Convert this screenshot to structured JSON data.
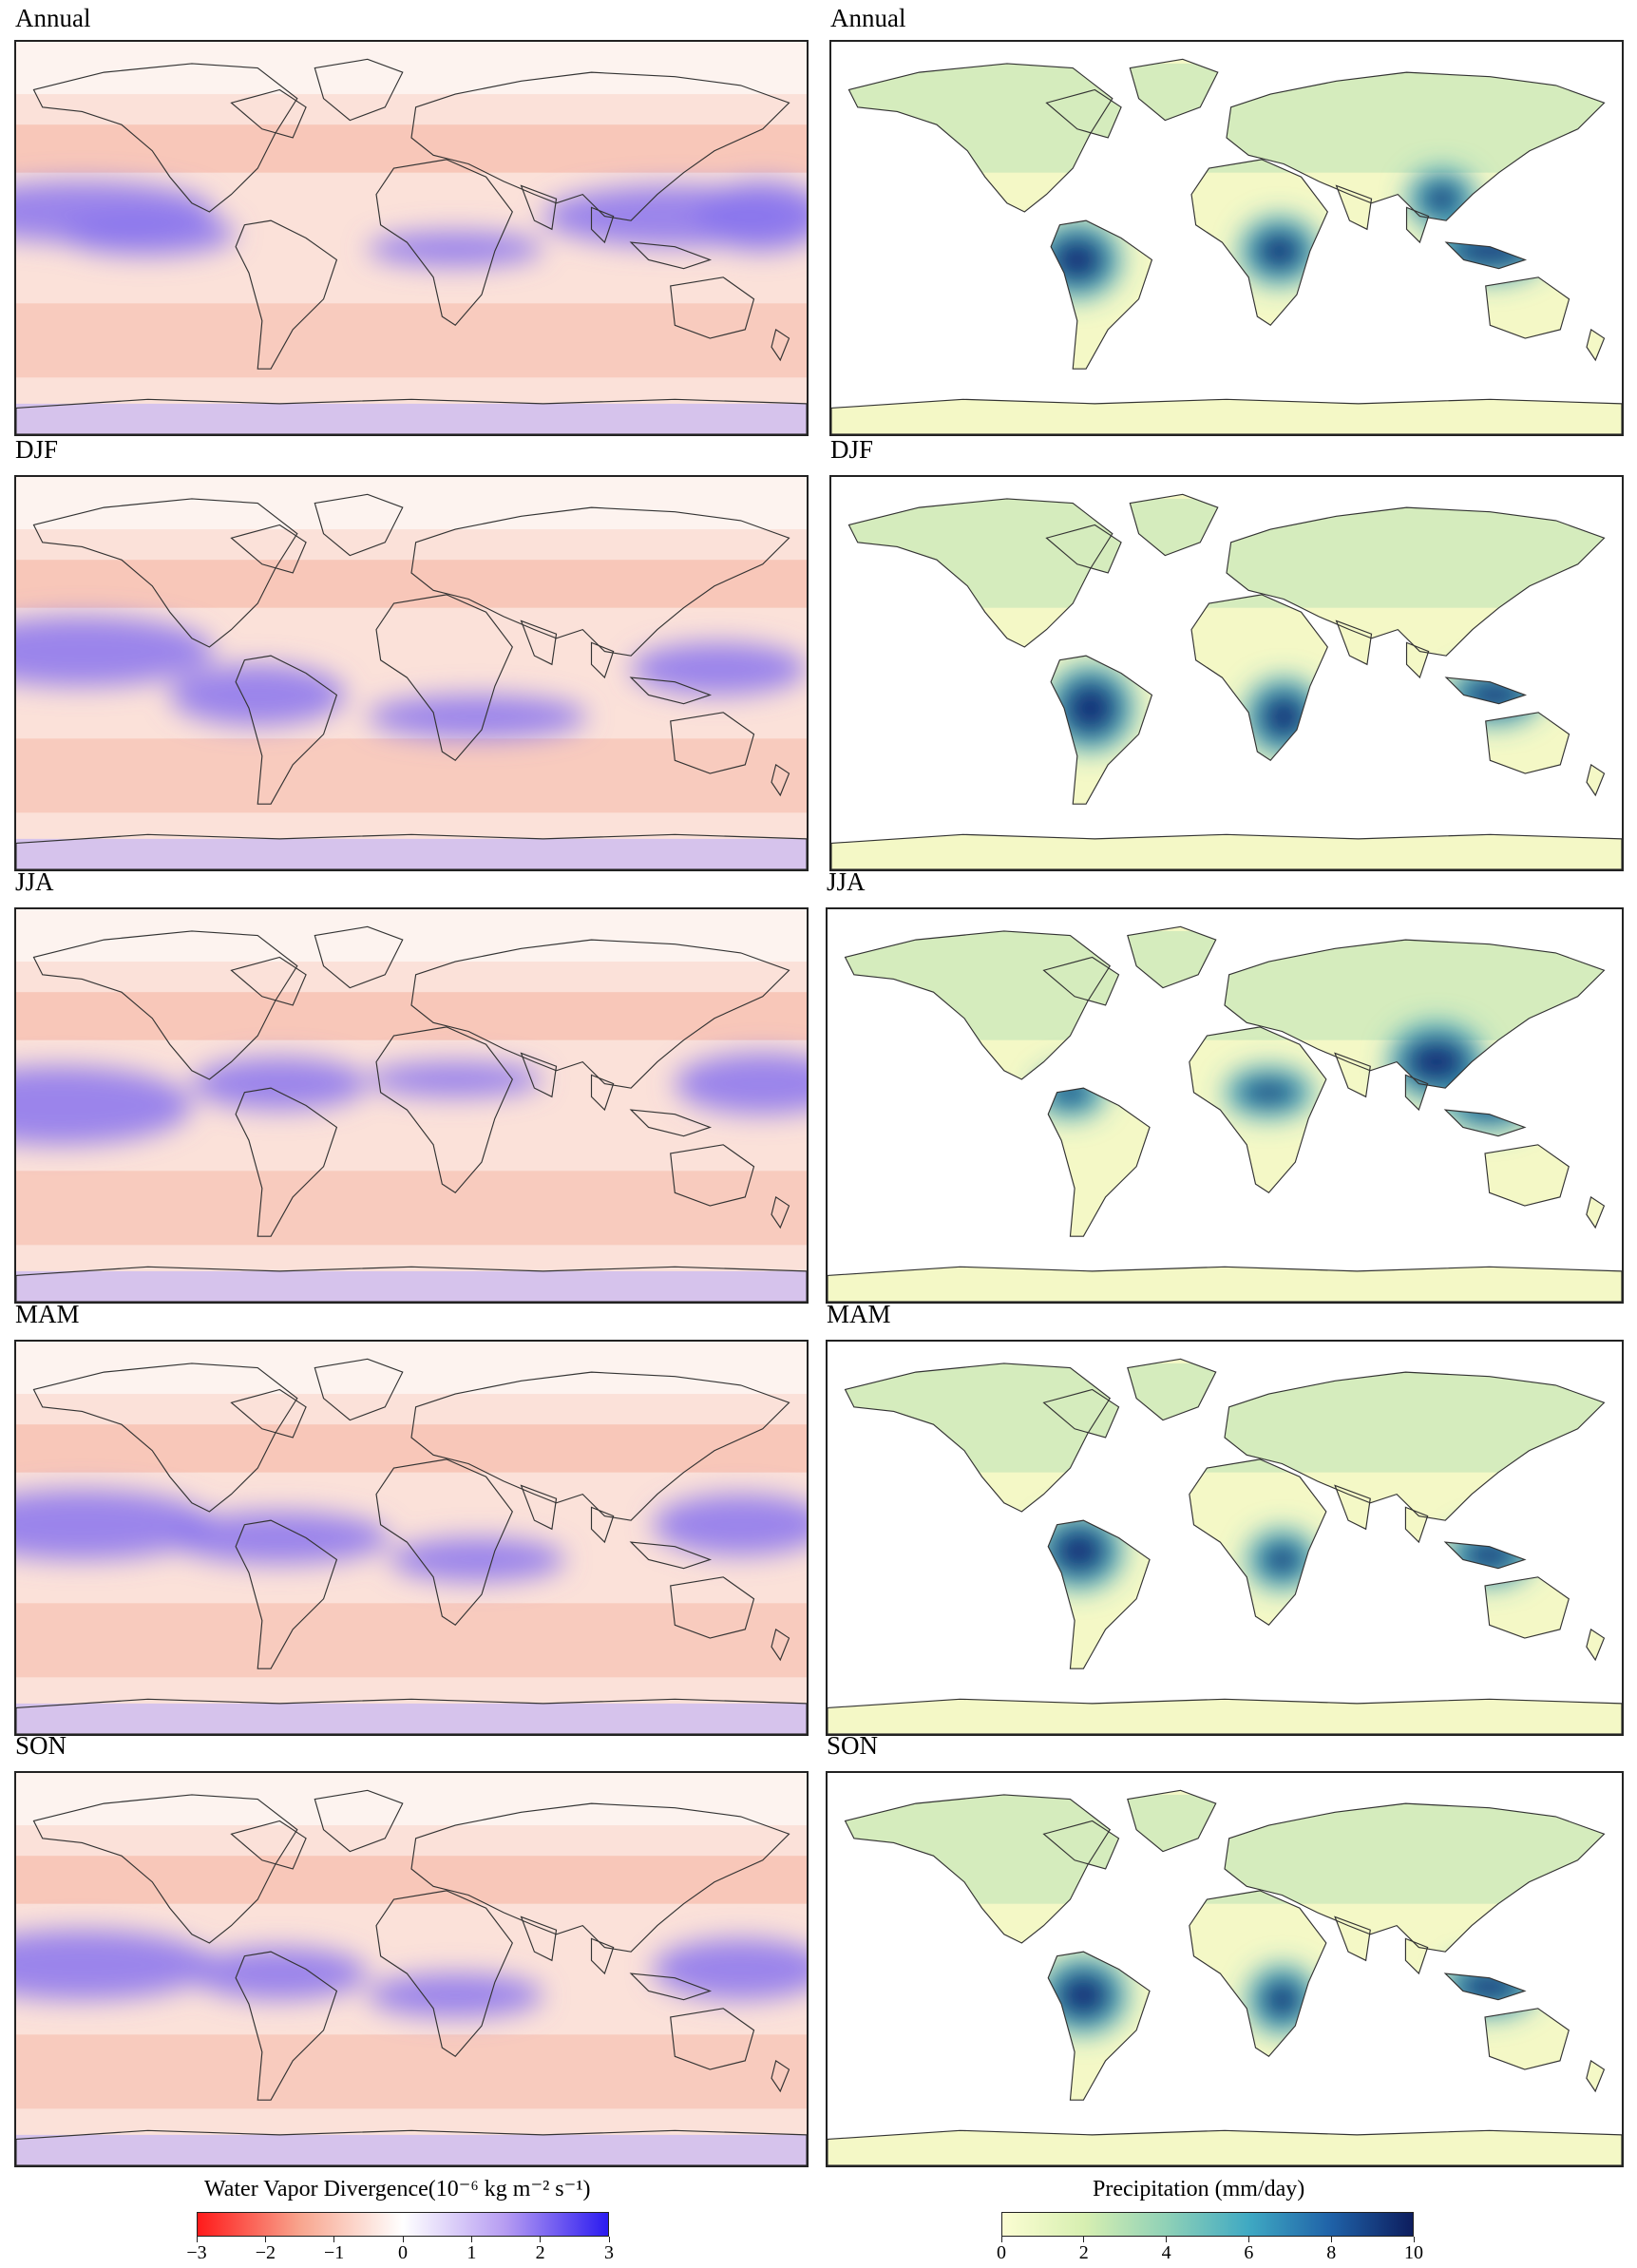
{
  "left_column": {
    "panels": [
      {
        "title": "Annual",
        "variant": "annual"
      },
      {
        "title": "DJF",
        "variant": "djf"
      },
      {
        "title": "JJA",
        "variant": "jja"
      },
      {
        "title": "MAM",
        "variant": "mam"
      },
      {
        "title": "SON",
        "variant": "son"
      }
    ]
  },
  "right_column": {
    "panels": [
      {
        "title": "Annual",
        "variant": "annual"
      },
      {
        "title": "DJF",
        "variant": "djf"
      },
      {
        "title": "JJA",
        "variant": "jja"
      },
      {
        "title": "MAM",
        "variant": "mam"
      },
      {
        "title": "SON",
        "variant": "son"
      }
    ]
  },
  "colorbars": {
    "divergence": {
      "title": "Water Vapor Divergence(10⁻⁶ kg m⁻² s⁻¹)",
      "ticks": [
        "−3",
        "−2",
        "−1",
        "0",
        "1",
        "2",
        "3"
      ],
      "range": [
        -3,
        3
      ],
      "colors": [
        "#ff1a1a",
        "#f8a58e",
        "#ffffff",
        "#b69cf2",
        "#2b1bf0"
      ]
    },
    "precipitation": {
      "title": "Precipitation (mm/day)",
      "ticks": [
        "0",
        "2",
        "4",
        "6",
        "8",
        "10"
      ],
      "range": [
        0,
        10
      ],
      "colors": [
        "#fbfdd2",
        "#d7efb1",
        "#8fd1b7",
        "#3fa9c3",
        "#1f62a8",
        "#0d1d5e"
      ]
    }
  },
  "colors": {
    "ocean_divergence_base": "#fbe1d9",
    "ocean_convergence_band": "#8a74ee",
    "land_precip_dry": "#f4f8c6",
    "land_precip_wet": "#15307a",
    "coastline": "#333333"
  }
}
